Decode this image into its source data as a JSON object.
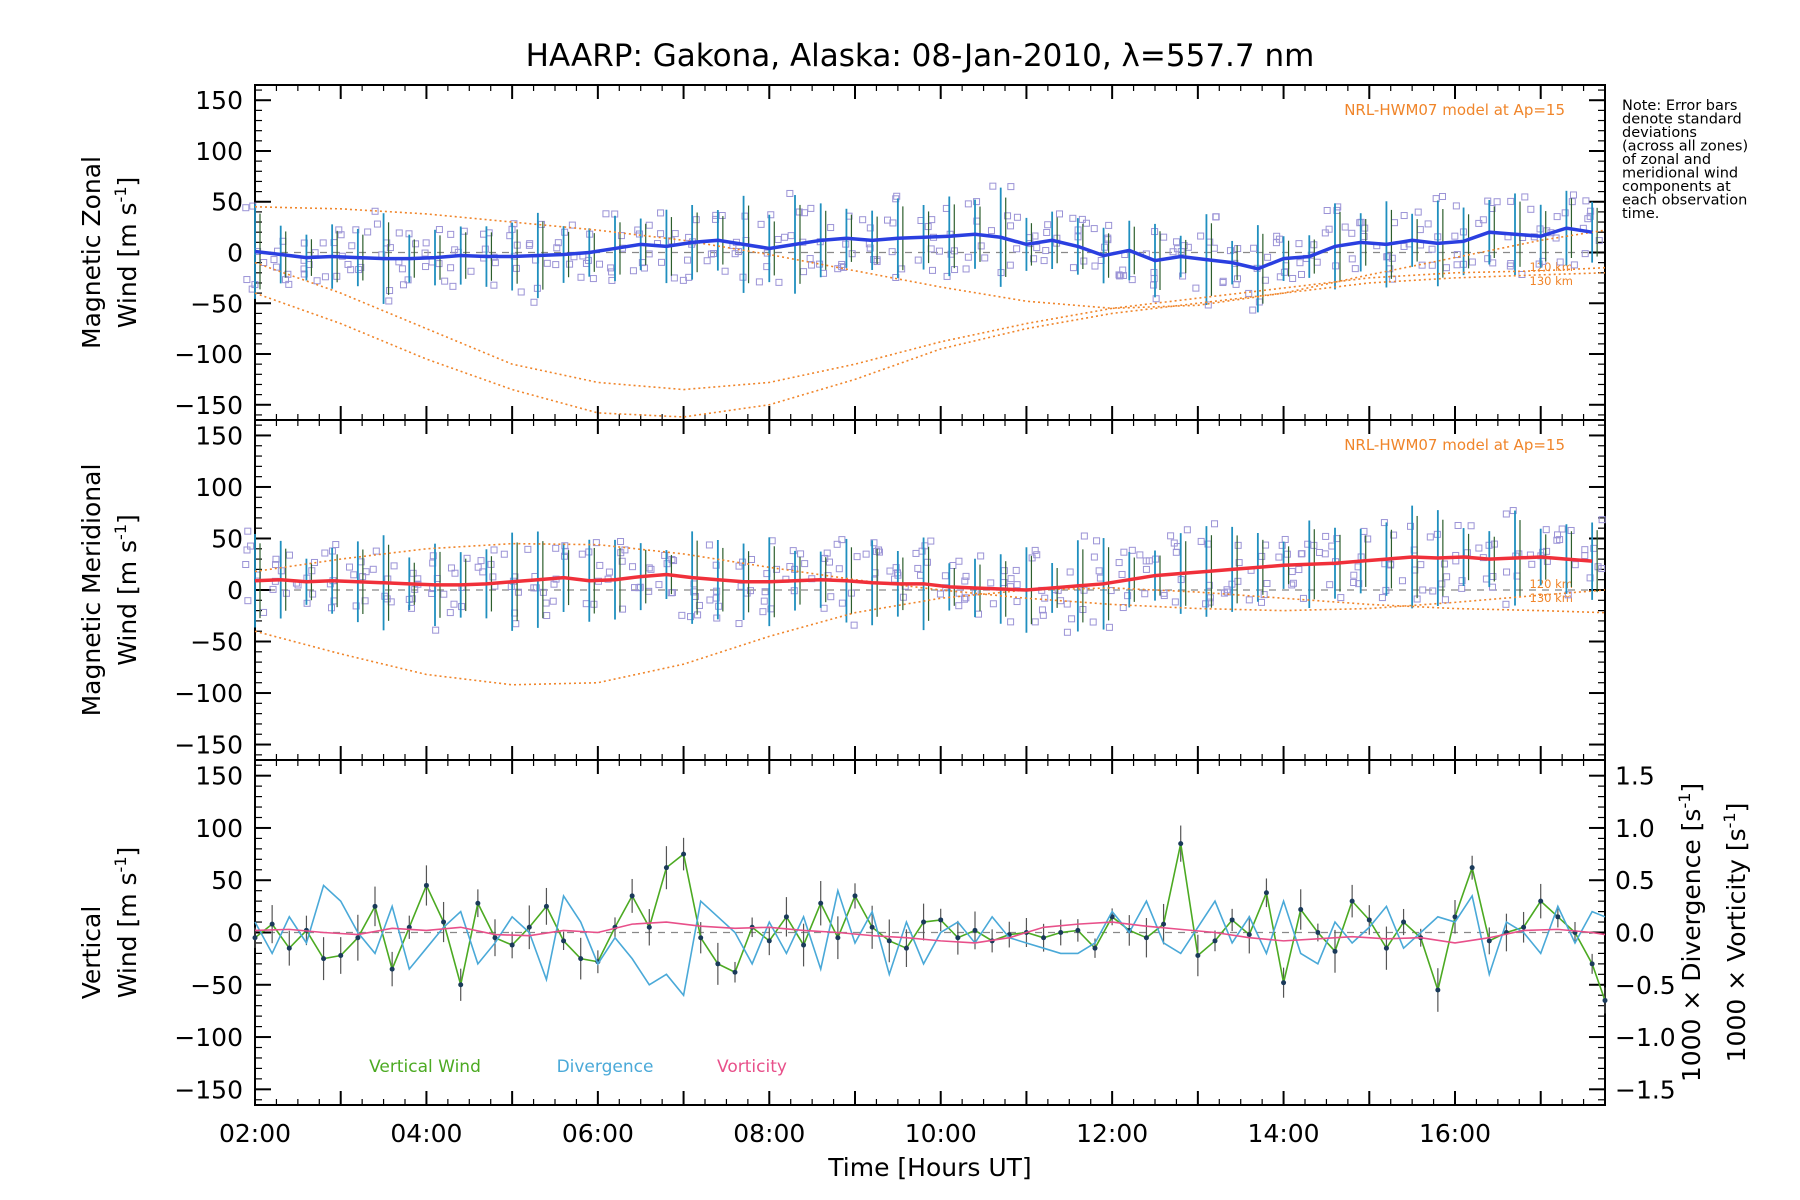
{
  "figure": {
    "title": "HAARP: Gakona,  Alaska: 08-Jan-2010, λ=557.7 nm",
    "note_lines": [
      "Note: Error bars",
      "denote standard",
      "deviations",
      "(across all zones)",
      "of zonal and",
      "meridional wind",
      "components at",
      "each observation",
      "time."
    ],
    "colors": {
      "model": "#f0852a",
      "zonal_mean": "#2a3fe0",
      "meridional_mean": "#f0303a",
      "vertical": "#4caa22",
      "divergence": "#4aa9d8",
      "vorticity": "#e8508a",
      "error_bar": "#1f8fbf",
      "scatter": "#9b93d6",
      "zero_line": "#888888"
    }
  },
  "chart_data": [
    {
      "type": "line",
      "panel": "zonal",
      "ylabel_main": "Magnetic Zonal",
      "ylabel_unit_word": "Wind",
      "ylabel_unit": "[m s",
      "ylabel_unit_exp": "-1",
      "ylabel_unit_close": "]",
      "xlim": [
        2.0,
        17.75
      ],
      "ylim": [
        -165,
        165
      ],
      "yticks": [
        -150,
        -100,
        -50,
        0,
        50,
        100,
        150
      ],
      "model_label": "NRL-HWM07 model at Ap=15",
      "altitude_labels": [
        "120 km",
        "130 km"
      ],
      "series": [
        {
          "role": "mean",
          "x": [
            2.0,
            2.3,
            2.6,
            2.9,
            3.2,
            3.5,
            3.8,
            4.1,
            4.4,
            4.7,
            5.0,
            5.3,
            5.6,
            5.9,
            6.2,
            6.5,
            6.8,
            7.1,
            7.4,
            7.7,
            8.0,
            8.3,
            8.6,
            8.9,
            9.2,
            9.5,
            9.8,
            10.1,
            10.4,
            10.7,
            11.0,
            11.3,
            11.6,
            11.9,
            12.2,
            12.5,
            12.8,
            13.1,
            13.4,
            13.7,
            14.0,
            14.3,
            14.6,
            14.9,
            15.2,
            15.5,
            15.8,
            16.1,
            16.4,
            16.7,
            17.0,
            17.3,
            17.6
          ],
          "y": [
            1,
            -2,
            -5,
            -4,
            -5,
            -6,
            -6,
            -5,
            -3,
            -4,
            -4,
            -3,
            -2,
            0,
            4,
            8,
            6,
            10,
            12,
            8,
            4,
            8,
            12,
            14,
            12,
            14,
            15,
            16,
            18,
            15,
            8,
            12,
            6,
            -3,
            2,
            -8,
            -4,
            -7,
            -10,
            -16,
            -6,
            -4,
            6,
            10,
            8,
            12,
            9,
            11,
            20,
            18,
            16,
            24,
            20
          ]
        },
        {
          "role": "model",
          "x": [
            2.0,
            3.0,
            4.0,
            5.0,
            6.0,
            7.0,
            8.0,
            9.0,
            10.0,
            11.0,
            12.0,
            13.0,
            14.0,
            15.0,
            16.0,
            17.0,
            17.75
          ],
          "y": [
            45,
            43,
            38,
            30,
            22,
            12,
            -2,
            -18,
            -34,
            -48,
            -55,
            -52,
            -40,
            -22,
            -5,
            12,
            22
          ]
        },
        {
          "role": "model",
          "x": [
            2.0,
            3.0,
            4.0,
            5.0,
            6.0,
            7.0,
            8.0,
            9.0,
            10.0,
            11.0,
            12.0,
            13.0,
            14.0,
            15.0,
            16.0,
            17.0,
            17.75
          ],
          "y": [
            -40,
            -70,
            -105,
            -135,
            -158,
            -162,
            -150,
            -125,
            -95,
            -75,
            -60,
            -50,
            -40,
            -30,
            -25,
            -22,
            -20
          ]
        },
        {
          "role": "model",
          "x": [
            2.0,
            3.0,
            4.0,
            5.0,
            6.0,
            7.0,
            8.0,
            9.0,
            10.0,
            11.0,
            12.0,
            13.0,
            14.0,
            15.0,
            16.0,
            17.0,
            17.75
          ],
          "y": [
            -10,
            -40,
            -75,
            -110,
            -128,
            -135,
            -128,
            -110,
            -88,
            -70,
            -55,
            -45,
            -35,
            -25,
            -20,
            -18,
            -15
          ]
        }
      ]
    },
    {
      "type": "line",
      "panel": "meridional",
      "ylabel_main": "Magnetic Meridional",
      "ylabel_unit_word": "Wind",
      "ylabel_unit": "[m s",
      "ylabel_unit_exp": "-1",
      "ylabel_unit_close": "]",
      "xlim": [
        2.0,
        17.75
      ],
      "ylim": [
        -165,
        165
      ],
      "yticks": [
        -150,
        -100,
        -50,
        0,
        50,
        100,
        150
      ],
      "model_label": "NRL-HWM07 model at Ap=15",
      "altitude_labels": [
        "120 km",
        "130 km"
      ],
      "series": [
        {
          "role": "mean",
          "x": [
            2.0,
            2.3,
            2.6,
            2.9,
            3.2,
            3.5,
            3.8,
            4.1,
            4.4,
            4.7,
            5.0,
            5.3,
            5.6,
            5.9,
            6.2,
            6.5,
            6.8,
            7.1,
            7.4,
            7.7,
            8.0,
            8.3,
            8.6,
            8.9,
            9.2,
            9.5,
            9.8,
            10.1,
            10.4,
            10.7,
            11.0,
            11.3,
            11.6,
            11.9,
            12.2,
            12.5,
            12.8,
            13.1,
            13.4,
            13.7,
            14.0,
            14.3,
            14.6,
            14.9,
            15.2,
            15.5,
            15.8,
            16.1,
            16.4,
            16.7,
            17.0,
            17.3,
            17.6
          ],
          "y": [
            9,
            10,
            8,
            9,
            8,
            7,
            6,
            5,
            5,
            6,
            8,
            10,
            12,
            9,
            10,
            13,
            15,
            12,
            10,
            8,
            8,
            9,
            10,
            9,
            7,
            6,
            6,
            3,
            2,
            1,
            0,
            2,
            4,
            6,
            10,
            14,
            16,
            18,
            20,
            22,
            24,
            25,
            26,
            28,
            30,
            32,
            31,
            32,
            30,
            31,
            32,
            30,
            28
          ]
        },
        {
          "role": "model",
          "x": [
            2.0,
            3.0,
            4.0,
            5.0,
            6.0,
            7.0,
            8.0,
            9.0,
            10.0,
            11.0,
            12.0,
            13.0,
            14.0,
            15.0,
            16.0,
            17.0,
            17.75
          ],
          "y": [
            -40,
            -62,
            -82,
            -92,
            -90,
            -72,
            -45,
            -22,
            -8,
            0,
            2,
            -2,
            -8,
            -14,
            -18,
            -20,
            -22
          ]
        },
        {
          "role": "model",
          "x": [
            2.0,
            3.0,
            4.0,
            5.0,
            6.0,
            7.0,
            8.0,
            9.0,
            10.0,
            11.0,
            12.0,
            13.0,
            14.0,
            15.0,
            16.0,
            17.0,
            17.75
          ],
          "y": [
            18,
            30,
            40,
            45,
            44,
            35,
            22,
            10,
            0,
            -8,
            -14,
            -18,
            -20,
            -18,
            -12,
            -5,
            0
          ]
        }
      ]
    },
    {
      "type": "line",
      "panel": "vertical",
      "ylabel_main": "Vertical",
      "ylabel_unit_word": "Wind",
      "ylabel_unit": "[m s",
      "ylabel_unit_exp": "-1",
      "ylabel_unit_close": "]",
      "ylabel_right_1_main": "1000 × Divergence",
      "ylabel_right_1_unit": "[s",
      "ylabel_right_2_main": "1000 × Vorticity",
      "ylabel_right_2_unit": "[s",
      "xlim": [
        2.0,
        17.75
      ],
      "ylim": [
        -165,
        165
      ],
      "yticks": [
        -150,
        -100,
        -50,
        0,
        50,
        100,
        150
      ],
      "y2lim": [
        -1.65,
        1.65
      ],
      "y2ticks": [
        -1.5,
        -1.0,
        -0.5,
        0.0,
        0.5,
        1.0,
        1.5
      ],
      "y2ticklabels": [
        "-1.5",
        "-1.0",
        "-0.5",
        "0.0",
        "0.5",
        "1.0",
        "1.5"
      ],
      "xticks": [
        2,
        4,
        6,
        8,
        10,
        12,
        14,
        16
      ],
      "xticklabels": [
        "02:00",
        "04:00",
        "06:00",
        "08:00",
        "10:00",
        "12:00",
        "14:00",
        "16:00"
      ],
      "xlabel": "Time [Hours UT]",
      "legend": [
        "Vertical Wind",
        "Divergence",
        "Vorticity"
      ],
      "series": [
        {
          "name": "Vertical Wind",
          "axis": "left",
          "x": [
            2.0,
            2.2,
            2.4,
            2.6,
            2.8,
            3.0,
            3.2,
            3.4,
            3.6,
            3.8,
            4.0,
            4.2,
            4.4,
            4.6,
            4.8,
            5.0,
            5.2,
            5.4,
            5.6,
            5.8,
            6.0,
            6.2,
            6.4,
            6.6,
            6.8,
            7.0,
            7.2,
            7.4,
            7.6,
            7.8,
            8.0,
            8.2,
            8.4,
            8.6,
            8.8,
            9.0,
            9.2,
            9.4,
            9.6,
            9.8,
            10.0,
            10.2,
            10.4,
            10.6,
            10.8,
            11.0,
            11.2,
            11.4,
            11.6,
            11.8,
            12.0,
            12.2,
            12.4,
            12.6,
            12.8,
            13.0,
            13.2,
            13.4,
            13.6,
            13.8,
            14.0,
            14.2,
            14.4,
            14.6,
            14.8,
            15.0,
            15.2,
            15.4,
            15.6,
            15.8,
            16.0,
            16.2,
            16.4,
            16.6,
            16.8,
            17.0,
            17.2,
            17.4,
            17.6,
            17.75
          ],
          "y": [
            -5,
            8,
            -15,
            2,
            -25,
            -22,
            -5,
            25,
            -35,
            5,
            45,
            10,
            -50,
            28,
            -5,
            -12,
            5,
            25,
            -8,
            -25,
            -28,
            5,
            35,
            5,
            62,
            75,
            -5,
            -30,
            -38,
            5,
            -8,
            15,
            -12,
            28,
            -5,
            35,
            5,
            -8,
            -15,
            10,
            12,
            -5,
            2,
            -8,
            -2,
            0,
            -5,
            0,
            2,
            -15,
            15,
            2,
            -5,
            8,
            85,
            -22,
            -8,
            12,
            -2,
            38,
            -48,
            22,
            0,
            -18,
            30,
            12,
            -15,
            10,
            -5,
            -55,
            15,
            62,
            -8,
            0,
            5,
            30,
            15,
            0,
            -30,
            -65
          ]
        },
        {
          "name": "Divergence",
          "axis": "right",
          "x": [
            2.0,
            2.2,
            2.4,
            2.6,
            2.8,
            3.0,
            3.2,
            3.4,
            3.6,
            3.8,
            4.0,
            4.2,
            4.4,
            4.6,
            4.8,
            5.0,
            5.2,
            5.4,
            5.6,
            5.8,
            6.0,
            6.2,
            6.4,
            6.6,
            6.8,
            7.0,
            7.2,
            7.4,
            7.6,
            7.8,
            8.0,
            8.2,
            8.4,
            8.6,
            8.8,
            9.0,
            9.2,
            9.4,
            9.6,
            9.8,
            10.0,
            10.2,
            10.4,
            10.6,
            10.8,
            11.0,
            11.2,
            11.4,
            11.6,
            11.8,
            12.0,
            12.2,
            12.4,
            12.6,
            12.8,
            13.0,
            13.2,
            13.4,
            13.6,
            13.8,
            14.0,
            14.2,
            14.4,
            14.6,
            14.8,
            15.0,
            15.2,
            15.4,
            15.6,
            15.8,
            16.0,
            16.2,
            16.4,
            16.6,
            16.8,
            17.0,
            17.2,
            17.4,
            17.6,
            17.75
          ],
          "y": [
            0.1,
            -0.2,
            0.15,
            -0.1,
            0.45,
            0.3,
            0.0,
            -0.2,
            0.25,
            -0.35,
            -0.15,
            0.05,
            0.2,
            -0.3,
            -0.1,
            0.15,
            0.0,
            -0.45,
            0.35,
            0.1,
            -0.3,
            -0.05,
            -0.25,
            -0.5,
            -0.4,
            -0.6,
            0.3,
            0.15,
            0.0,
            -0.3,
            0.1,
            -0.2,
            0.15,
            -0.35,
            0.4,
            -0.1,
            0.2,
            -0.4,
            0.1,
            -0.3,
            0.0,
            0.1,
            -0.1,
            0.15,
            -0.05,
            -0.1,
            -0.15,
            -0.2,
            -0.2,
            -0.1,
            0.2,
            0.0,
            0.3,
            -0.1,
            -0.2,
            0.05,
            0.3,
            -0.1,
            0.15,
            -0.2,
            0.3,
            -0.2,
            -0.3,
            0.1,
            -0.1,
            0.05,
            0.25,
            -0.15,
            0.0,
            0.15,
            0.1,
            0.35,
            -0.4,
            0.1,
            0.0,
            -0.2,
            0.25,
            -0.1,
            0.2,
            0.15
          ]
        },
        {
          "name": "Vorticity",
          "axis": "right",
          "x": [
            2.0,
            2.4,
            2.8,
            3.2,
            3.6,
            4.0,
            4.4,
            4.8,
            5.2,
            5.6,
            6.0,
            6.4,
            6.8,
            7.2,
            7.6,
            8.0,
            8.4,
            8.8,
            9.2,
            9.6,
            10.0,
            10.4,
            10.8,
            11.2,
            11.6,
            12.0,
            12.4,
            12.8,
            13.2,
            13.6,
            14.0,
            14.4,
            14.8,
            15.2,
            15.6,
            16.0,
            16.4,
            16.8,
            17.2,
            17.6,
            17.75
          ],
          "y": [
            0.02,
            0.03,
            0.0,
            -0.02,
            0.04,
            0.02,
            0.05,
            -0.02,
            -0.03,
            0.02,
            0.0,
            0.08,
            0.1,
            0.06,
            0.04,
            0.05,
            0.02,
            0.0,
            -0.03,
            -0.05,
            -0.08,
            -0.1,
            -0.05,
            0.05,
            0.08,
            0.1,
            0.06,
            0.03,
            0.0,
            -0.05,
            -0.08,
            -0.06,
            -0.04,
            -0.06,
            -0.05,
            -0.1,
            -0.05,
            0.02,
            0.03,
            0.0,
            -0.02
          ]
        }
      ]
    }
  ]
}
